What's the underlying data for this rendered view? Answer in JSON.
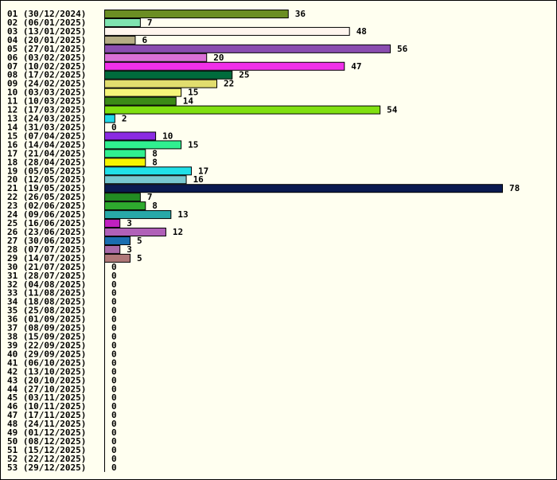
{
  "chart_data": {
    "type": "bar",
    "orientation": "horizontal",
    "title": "",
    "xlabel": "",
    "ylabel": "",
    "grid": false,
    "legend": "none",
    "xlim": [
      0,
      78
    ],
    "background": "#fffff0",
    "categories": [
      "01 (30/12/2024)",
      "02 (06/01/2025)",
      "03 (13/01/2025)",
      "04 (20/01/2025)",
      "05 (27/01/2025)",
      "06 (03/02/2025)",
      "07 (10/02/2025)",
      "08 (17/02/2025)",
      "09 (24/02/2025)",
      "10 (03/03/2025)",
      "11 (10/03/2025)",
      "12 (17/03/2025)",
      "13 (24/03/2025)",
      "14 (31/03/2025)",
      "15 (07/04/2025)",
      "16 (14/04/2025)",
      "17 (21/04/2025)",
      "18 (28/04/2025)",
      "19 (05/05/2025)",
      "20 (12/05/2025)",
      "21 (19/05/2025)",
      "22 (26/05/2025)",
      "23 (02/06/2025)",
      "24 (09/06/2025)",
      "25 (16/06/2025)",
      "26 (23/06/2025)",
      "27 (30/06/2025)",
      "28 (07/07/2025)",
      "29 (14/07/2025)",
      "30 (21/07/2025)",
      "31 (28/07/2025)",
      "32 (04/08/2025)",
      "33 (11/08/2025)",
      "34 (18/08/2025)",
      "35 (25/08/2025)",
      "36 (01/09/2025)",
      "37 (08/09/2025)",
      "38 (15/09/2025)",
      "39 (22/09/2025)",
      "40 (29/09/2025)",
      "41 (06/10/2025)",
      "42 (13/10/2025)",
      "43 (20/10/2025)",
      "44 (27/10/2025)",
      "45 (03/11/2025)",
      "46 (10/11/2025)",
      "47 (17/11/2025)",
      "48 (24/11/2025)",
      "49 (01/12/2025)",
      "50 (08/12/2025)",
      "51 (15/12/2025)",
      "52 (22/12/2025)",
      "53 (29/12/2025)"
    ],
    "values": [
      36,
      7,
      48,
      6,
      56,
      20,
      47,
      25,
      22,
      15,
      14,
      54,
      2,
      0,
      10,
      15,
      8,
      8,
      17,
      16,
      78,
      7,
      8,
      13,
      3,
      12,
      5,
      3,
      5,
      0,
      0,
      0,
      0,
      0,
      0,
      0,
      0,
      0,
      0,
      0,
      0,
      0,
      0,
      0,
      0,
      0,
      0,
      0,
      0,
      0,
      0,
      0,
      0
    ],
    "colors": [
      "#6b8e23",
      "#7fe3b0",
      "#fff5ee",
      "#b5ad85",
      "#8a4db0",
      "#da70d6",
      "#f030e8",
      "#006b3c",
      "#e1dd6e",
      "#f5f57a",
      "#3b8a16",
      "#80e010",
      "#20d8e8",
      "#ffffff",
      "#8a2be2",
      "#30f090",
      "#30f090",
      "#f5f500",
      "#20e0e8",
      "#78c8d0",
      "#0a1a50",
      "#228b22",
      "#2eaa2e",
      "#28a8a8",
      "#c020c0",
      "#b060b8",
      "#1a6eb0",
      "#a86aa8",
      "#b07878",
      "#ffffff",
      "#ffffff",
      "#ffffff",
      "#ffffff",
      "#ffffff",
      "#ffffff",
      "#ffffff",
      "#ffffff",
      "#ffffff",
      "#ffffff",
      "#ffffff",
      "#ffffff",
      "#ffffff",
      "#ffffff",
      "#ffffff",
      "#ffffff",
      "#ffffff",
      "#ffffff",
      "#ffffff",
      "#ffffff",
      "#ffffff",
      "#ffffff",
      "#ffffff",
      "#ffffff"
    ]
  }
}
